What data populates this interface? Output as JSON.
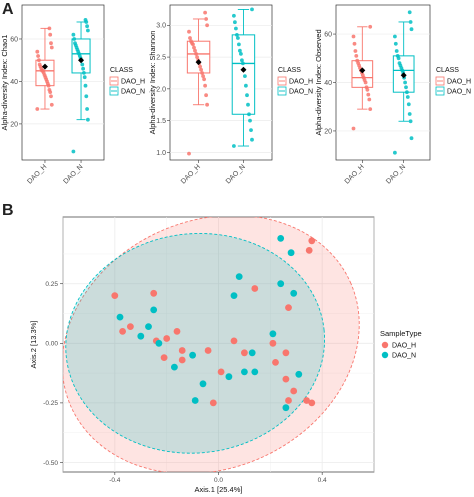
{
  "panel_labels": [
    "A",
    "B"
  ],
  "colors": {
    "dao_h": "#f8766d",
    "dao_n": "#00bfc4",
    "panel_bg": "#ffffff",
    "grid": "#ebebeb"
  },
  "chart_data": [
    {
      "type": "box",
      "panel": "A",
      "ylabel": "Alpha-diversity Index: Chao1",
      "categories": [
        "DAO_H",
        "DAO_N"
      ],
      "yticks": [
        20,
        40,
        60
      ],
      "ylim": [
        3,
        76
      ],
      "legend": {
        "title": "CLASS",
        "entries": [
          "DAO_H",
          "DAO_N"
        ],
        "position": "right"
      },
      "boxes": [
        {
          "name": "DAO_H",
          "q1": 38,
          "median": 45,
          "q3": 50,
          "whisker_low": 27,
          "whisker_high": 65,
          "mean": 47,
          "points": [
            27,
            29,
            33,
            35,
            36,
            38,
            39,
            40,
            41,
            42,
            43,
            44,
            45,
            45,
            46,
            47,
            48,
            50,
            52,
            54,
            56,
            58,
            62,
            65
          ]
        },
        {
          "name": "DAO_N",
          "q1": 44,
          "median": 53,
          "q3": 60,
          "whisker_low": 22,
          "whisker_high": 68,
          "mean": 50,
          "points": [
            7,
            22,
            27,
            33,
            38,
            42,
            44,
            46,
            48,
            50,
            51,
            52,
            53,
            54,
            55,
            56,
            57,
            58,
            60,
            62,
            64,
            66,
            68,
            69
          ]
        }
      ]
    },
    {
      "type": "box",
      "panel": "A",
      "ylabel": "Alpha-diversity Index: Shannon",
      "categories": [
        "DAO_H",
        "DAO_N"
      ],
      "yticks": [
        1.0,
        1.5,
        2.0,
        2.5,
        3.0
      ],
      "ylim": [
        0.88,
        3.32
      ],
      "legend": {
        "title": "CLASS",
        "entries": [
          "DAO_H",
          "DAO_N"
        ],
        "position": "right"
      },
      "boxes": [
        {
          "name": "DAO_H",
          "q1": 2.25,
          "median": 2.55,
          "q3": 2.75,
          "whisker_low": 1.75,
          "whisker_high": 3.1,
          "mean": 2.42,
          "points": [
            0.98,
            1.75,
            1.9,
            2.05,
            2.15,
            2.2,
            2.25,
            2.3,
            2.35,
            2.4,
            2.45,
            2.5,
            2.55,
            2.6,
            2.65,
            2.7,
            2.72,
            2.75,
            2.8,
            2.9,
            3.0,
            3.1,
            3.2
          ]
        },
        {
          "name": "DAO_N",
          "q1": 1.6,
          "median": 2.4,
          "q3": 2.85,
          "whisker_low": 1.1,
          "whisker_high": 3.25,
          "mean": 2.3,
          "points": [
            1.1,
            1.2,
            1.35,
            1.5,
            1.6,
            1.75,
            1.9,
            2.05,
            2.2,
            2.3,
            2.4,
            2.45,
            2.55,
            2.6,
            2.7,
            2.8,
            2.85,
            2.95,
            3.05,
            3.15,
            3.25
          ]
        }
      ]
    },
    {
      "type": "box",
      "panel": "A",
      "ylabel": "Alpha-diversity Index: Observed",
      "categories": [
        "DAO_H",
        "DAO_N"
      ],
      "yticks": [
        20,
        40,
        60
      ],
      "ylim": [
        8,
        72
      ],
      "legend": {
        "title": "CLASS",
        "entries": [
          "DAO_H",
          "DAO_N"
        ],
        "position": "right"
      },
      "boxes": [
        {
          "name": "DAO_H",
          "q1": 38,
          "median": 42,
          "q3": 49,
          "whisker_low": 29,
          "whisker_high": 63,
          "mean": 45,
          "points": [
            21,
            29,
            33,
            35,
            37,
            38,
            40,
            41,
            42,
            43,
            44,
            45,
            46,
            47,
            48,
            49,
            51,
            53,
            56,
            59,
            63
          ]
        },
        {
          "name": "DAO_N",
          "q1": 36,
          "median": 45,
          "q3": 51,
          "whisker_low": 24,
          "whisker_high": 65,
          "mean": 43,
          "points": [
            11,
            17,
            24,
            27,
            31,
            34,
            36,
            38,
            40,
            42,
            44,
            45,
            46,
            47,
            48,
            50,
            51,
            53,
            56,
            59,
            62,
            65,
            69
          ]
        }
      ]
    },
    {
      "type": "scatter",
      "panel": "B",
      "xlabel": "Axis.1   [25.4%]",
      "ylabel": "Axis.2   [13.3%]",
      "xticks": [
        -0.4,
        0.0,
        0.4
      ],
      "yticks": [
        -0.5,
        -0.25,
        0.0,
        0.25
      ],
      "xlim": [
        -0.6,
        0.6
      ],
      "ylim": [
        -0.54,
        0.53
      ],
      "grid": true,
      "legend": {
        "title": "SampleType",
        "entries": [
          "DAO_H",
          "DAO_N"
        ],
        "position": "right"
      },
      "series": [
        {
          "name": "DAO_H",
          "points": [
            [
              0.36,
              0.43
            ],
            [
              0.35,
              0.39
            ],
            [
              -0.4,
              0.2
            ],
            [
              -0.25,
              0.21
            ],
            [
              0.14,
              0.23
            ],
            [
              0.27,
              0.15
            ],
            [
              0.21,
              0.0
            ],
            [
              -0.34,
              0.07
            ],
            [
              -0.37,
              0.05
            ],
            [
              -0.16,
              0.05
            ],
            [
              -0.2,
              0.02
            ],
            [
              -0.24,
              0.01
            ],
            [
              -0.14,
              -0.03
            ],
            [
              0.06,
              0.01
            ],
            [
              -0.04,
              -0.03
            ],
            [
              0.1,
              -0.04
            ],
            [
              0.26,
              -0.04
            ],
            [
              -0.21,
              -0.06
            ],
            [
              -0.14,
              -0.07
            ],
            [
              0.22,
              -0.08
            ],
            [
              0.01,
              -0.12
            ],
            [
              0.29,
              -0.2
            ],
            [
              0.27,
              -0.24
            ],
            [
              0.34,
              -0.24
            ],
            [
              0.36,
              -0.25
            ],
            [
              -0.02,
              -0.25
            ],
            [
              0.26,
              -0.15
            ]
          ]
        },
        {
          "name": "DAO_N",
          "points": [
            [
              0.24,
              0.44
            ],
            [
              0.28,
              0.38
            ],
            [
              0.08,
              0.28
            ],
            [
              0.24,
              0.25
            ],
            [
              0.06,
              0.2
            ],
            [
              0.29,
              0.21
            ],
            [
              -0.25,
              0.14
            ],
            [
              -0.38,
              0.11
            ],
            [
              -0.27,
              0.07
            ],
            [
              -0.3,
              0.03
            ],
            [
              -0.23,
              0.0
            ],
            [
              0.21,
              0.04
            ],
            [
              -0.1,
              -0.05
            ],
            [
              -0.17,
              -0.1
            ],
            [
              0.1,
              -0.12
            ],
            [
              0.14,
              -0.12
            ],
            [
              0.31,
              -0.13
            ],
            [
              0.04,
              -0.14
            ],
            [
              -0.06,
              -0.17
            ],
            [
              -0.09,
              -0.24
            ],
            [
              0.26,
              -0.27
            ],
            [
              0.13,
              -0.04
            ]
          ]
        }
      ],
      "ellipses": [
        {
          "name": "DAO_H",
          "cx": -0.03,
          "cy": -0.005,
          "rx": 0.59,
          "ry": 0.52,
          "rotate_deg": -24
        },
        {
          "name": "DAO_N",
          "cx": -0.09,
          "cy": 0.0,
          "rx": 0.5,
          "ry": 0.46,
          "rotate_deg": -6
        }
      ]
    }
  ]
}
